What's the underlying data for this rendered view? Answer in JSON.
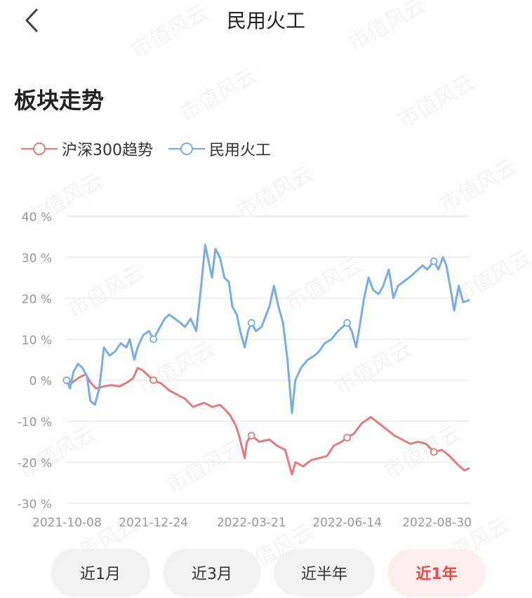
{
  "header": {
    "title": "民用火工",
    "back_icon": "chevron-left-icon"
  },
  "section_title": "板块走势",
  "watermark_text": "市值风云",
  "legend": [
    {
      "name": "沪深300趋势",
      "color": "#e07d7d"
    },
    {
      "name": "民用火工",
      "color": "#7aaee0"
    }
  ],
  "range_tabs": [
    {
      "label": "近1月",
      "active": false
    },
    {
      "label": "近3月",
      "active": false
    },
    {
      "label": "近半年",
      "active": false
    },
    {
      "label": "近1年",
      "active": true
    }
  ],
  "colors": {
    "csi300": "#e07d7d",
    "sector": "#7aaee0",
    "accent": "#e35050",
    "grid": "#ececec",
    "axis_text": "#999999"
  },
  "chart_data": {
    "type": "line",
    "title": "",
    "xlabel": "",
    "ylabel": "",
    "x_tick_labels": [
      "2021-10-08",
      "2021-12-24",
      "2022-03-21",
      "2022-06-14",
      "2022-08-30"
    ],
    "y_tick_labels": [
      "40 %",
      "30 %",
      "20 %",
      "10 %",
      "0 %",
      "-10 %",
      "-20 %",
      "-30 %"
    ],
    "y_ticks": [
      40,
      30,
      20,
      10,
      0,
      -10,
      -20,
      -30
    ],
    "ylim": [
      -30,
      40
    ],
    "x_range": [
      "2021-10-08",
      "2022-09-30"
    ],
    "grid": true,
    "legend_position": "top-left",
    "series": [
      {
        "name": "沪深300趋势",
        "color": "#e07d7d",
        "points": [
          [
            "2021-10-08",
            0
          ],
          [
            "2021-10-12",
            -0.8
          ],
          [
            "2021-10-18",
            0.5
          ],
          [
            "2021-10-25",
            1.5
          ],
          [
            "2021-10-29",
            -0.5
          ],
          [
            "2021-11-03",
            -2
          ],
          [
            "2021-11-10",
            -1.5
          ],
          [
            "2021-11-17",
            -1.2
          ],
          [
            "2021-11-24",
            -1.5
          ],
          [
            "2021-12-01",
            -0.5
          ],
          [
            "2021-12-06",
            0.5
          ],
          [
            "2021-12-10",
            3
          ],
          [
            "2021-12-14",
            2.5
          ],
          [
            "2021-12-20",
            1
          ],
          [
            "2021-12-24",
            0
          ],
          [
            "2021-12-31",
            -0.8
          ],
          [
            "2022-01-07",
            -2.5
          ],
          [
            "2022-01-14",
            -3.5
          ],
          [
            "2022-01-21",
            -4.5
          ],
          [
            "2022-01-28",
            -6.5
          ],
          [
            "2022-02-07",
            -5.5
          ],
          [
            "2022-02-14",
            -6.5
          ],
          [
            "2022-02-21",
            -6
          ],
          [
            "2022-02-25",
            -7
          ],
          [
            "2022-03-02",
            -8.5
          ],
          [
            "2022-03-07",
            -11
          ],
          [
            "2022-03-10",
            -13.5
          ],
          [
            "2022-03-15",
            -19
          ],
          [
            "2022-03-17",
            -15
          ],
          [
            "2022-03-21",
            -13.5
          ],
          [
            "2022-03-28",
            -15
          ],
          [
            "2022-04-06",
            -14.5
          ],
          [
            "2022-04-13",
            -16
          ],
          [
            "2022-04-20",
            -17
          ],
          [
            "2022-04-26",
            -23
          ],
          [
            "2022-04-29",
            -20
          ],
          [
            "2022-05-06",
            -21
          ],
          [
            "2022-05-13",
            -19.5
          ],
          [
            "2022-05-20",
            -19
          ],
          [
            "2022-05-27",
            -18.5
          ],
          [
            "2022-06-02",
            -16
          ],
          [
            "2022-06-09",
            -15
          ],
          [
            "2022-06-14",
            -14
          ],
          [
            "2022-06-20",
            -13
          ],
          [
            "2022-06-27",
            -10.5
          ],
          [
            "2022-07-05",
            -9
          ],
          [
            "2022-07-12",
            -10.5
          ],
          [
            "2022-07-19",
            -12
          ],
          [
            "2022-07-26",
            -13.5
          ],
          [
            "2022-08-02",
            -14.5
          ],
          [
            "2022-08-09",
            -15.5
          ],
          [
            "2022-08-16",
            -15
          ],
          [
            "2022-08-23",
            -15.5
          ],
          [
            "2022-08-30",
            -17.5
          ],
          [
            "2022-09-06",
            -17
          ],
          [
            "2022-09-13",
            -18.5
          ],
          [
            "2022-09-20",
            -20.5
          ],
          [
            "2022-09-26",
            -22
          ],
          [
            "2022-09-30",
            -21.5
          ]
        ]
      },
      {
        "name": "民用火工",
        "color": "#7aaee0",
        "points": [
          [
            "2021-10-08",
            0
          ],
          [
            "2021-10-11",
            -2
          ],
          [
            "2021-10-14",
            2
          ],
          [
            "2021-10-18",
            4
          ],
          [
            "2021-10-22",
            3
          ],
          [
            "2021-10-26",
            1
          ],
          [
            "2021-10-29",
            -5
          ],
          [
            "2021-11-02",
            -6
          ],
          [
            "2021-11-06",
            -2
          ],
          [
            "2021-11-10",
            8
          ],
          [
            "2021-11-15",
            6
          ],
          [
            "2021-11-20",
            7
          ],
          [
            "2021-11-25",
            9
          ],
          [
            "2021-11-30",
            8
          ],
          [
            "2021-12-03",
            10
          ],
          [
            "2021-12-07",
            5
          ],
          [
            "2021-12-10",
            8
          ],
          [
            "2021-12-15",
            11
          ],
          [
            "2021-12-20",
            12
          ],
          [
            "2021-12-24",
            10
          ],
          [
            "2021-12-28",
            12
          ],
          [
            "2022-01-03",
            15
          ],
          [
            "2022-01-07",
            16
          ],
          [
            "2022-01-12",
            15
          ],
          [
            "2022-01-17",
            14
          ],
          [
            "2022-01-21",
            13
          ],
          [
            "2022-01-26",
            15
          ],
          [
            "2022-01-31",
            12
          ],
          [
            "2022-02-04",
            22
          ],
          [
            "2022-02-08",
            33
          ],
          [
            "2022-02-11",
            29
          ],
          [
            "2022-02-14",
            25
          ],
          [
            "2022-02-17",
            32
          ],
          [
            "2022-02-21",
            30
          ],
          [
            "2022-02-25",
            25
          ],
          [
            "2022-03-01",
            24
          ],
          [
            "2022-03-04",
            18
          ],
          [
            "2022-03-08",
            16
          ],
          [
            "2022-03-11",
            12
          ],
          [
            "2022-03-15",
            8
          ],
          [
            "2022-03-18",
            12
          ],
          [
            "2022-03-21",
            14
          ],
          [
            "2022-03-25",
            12
          ],
          [
            "2022-03-30",
            13
          ],
          [
            "2022-04-06",
            18
          ],
          [
            "2022-04-10",
            23
          ],
          [
            "2022-04-14",
            18
          ],
          [
            "2022-04-18",
            14
          ],
          [
            "2022-04-22",
            5
          ],
          [
            "2022-04-26",
            -8
          ],
          [
            "2022-04-29",
            0
          ],
          [
            "2022-05-04",
            3
          ],
          [
            "2022-05-10",
            5
          ],
          [
            "2022-05-16",
            6
          ],
          [
            "2022-05-20",
            7
          ],
          [
            "2022-05-25",
            9
          ],
          [
            "2022-05-31",
            10
          ],
          [
            "2022-06-06",
            12
          ],
          [
            "2022-06-10",
            13
          ],
          [
            "2022-06-14",
            14
          ],
          [
            "2022-06-18",
            12
          ],
          [
            "2022-06-22",
            8
          ],
          [
            "2022-06-25",
            13
          ],
          [
            "2022-06-29",
            20
          ],
          [
            "2022-07-03",
            25
          ],
          [
            "2022-07-07",
            22
          ],
          [
            "2022-07-12",
            21
          ],
          [
            "2022-07-16",
            23
          ],
          [
            "2022-07-21",
            27
          ],
          [
            "2022-07-25",
            20
          ],
          [
            "2022-07-29",
            23
          ],
          [
            "2022-08-03",
            24
          ],
          [
            "2022-08-08",
            25
          ],
          [
            "2022-08-12",
            26
          ],
          [
            "2022-08-16",
            27
          ],
          [
            "2022-08-20",
            28
          ],
          [
            "2022-08-24",
            27
          ],
          [
            "2022-08-30",
            29
          ],
          [
            "2022-09-03",
            27
          ],
          [
            "2022-09-07",
            30
          ],
          [
            "2022-09-10",
            28
          ],
          [
            "2022-09-14",
            22
          ],
          [
            "2022-09-17",
            17
          ],
          [
            "2022-09-21",
            23
          ],
          [
            "2022-09-25",
            19
          ],
          [
            "2022-09-30",
            19.5
          ]
        ]
      }
    ],
    "markers": {
      "沪深300趋势": [
        "2021-10-08",
        "2021-12-24",
        "2022-03-21",
        "2022-06-14",
        "2022-08-30"
      ],
      "民用火工": [
        "2021-10-08",
        "2021-12-24",
        "2022-03-21",
        "2022-06-14",
        "2022-08-30"
      ]
    }
  }
}
